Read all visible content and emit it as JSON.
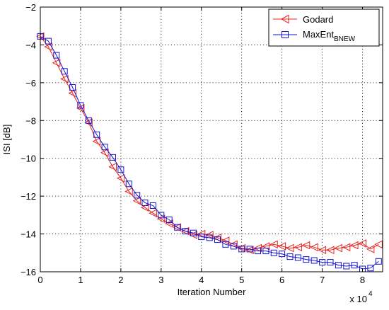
{
  "chart_data": {
    "type": "line",
    "xlabel": "Iteration Number",
    "ylabel": "ISI [dB]",
    "x_multiplier_label": "x 10",
    "x_multiplier_exponent": "4",
    "xlim": [
      0,
      85000
    ],
    "ylim": [
      -16,
      -2
    ],
    "x_ticks": [
      0,
      1,
      2,
      3,
      4,
      5,
      6,
      7,
      8
    ],
    "y_ticks": [
      -16,
      -14,
      -12,
      -10,
      -8,
      -6,
      -4,
      -2
    ],
    "grid": true,
    "legend_position": "top-right",
    "series": [
      {
        "name": "Godard",
        "color": "#e8231f",
        "marker": "triangle-left",
        "x": [
          0,
          2000,
          4000,
          6000,
          8000,
          10000,
          12000,
          14000,
          16000,
          18000,
          20000,
          22000,
          24000,
          26000,
          28000,
          30000,
          32000,
          34000,
          36000,
          38000,
          40000,
          42000,
          44000,
          46000,
          48000,
          50000,
          52000,
          54000,
          56000,
          58000,
          60000,
          62000,
          64000,
          66000,
          68000,
          70000,
          72000,
          74000,
          76000,
          78000,
          80000,
          82000,
          84000
        ],
        "values": [
          -3.55,
          -4.1,
          -4.95,
          -5.8,
          -6.55,
          -7.35,
          -8.1,
          -9.1,
          -9.7,
          -10.45,
          -11.05,
          -11.75,
          -12.25,
          -12.6,
          -12.9,
          -13.2,
          -13.45,
          -13.65,
          -13.85,
          -14.05,
          -14.0,
          -14.05,
          -14.2,
          -14.35,
          -14.55,
          -14.75,
          -14.85,
          -14.75,
          -14.65,
          -14.55,
          -14.65,
          -14.75,
          -14.7,
          -14.6,
          -14.7,
          -14.85,
          -14.85,
          -14.75,
          -14.7,
          -14.6,
          -14.5,
          -14.8,
          -14.55
        ]
      },
      {
        "name": "MaxEnt",
        "name_subscript": "BNEW",
        "color": "#1414d2",
        "marker": "square",
        "x": [
          0,
          2000,
          4000,
          6000,
          8000,
          10000,
          12000,
          14000,
          16000,
          18000,
          20000,
          22000,
          24000,
          26000,
          28000,
          30000,
          32000,
          34000,
          36000,
          38000,
          40000,
          42000,
          44000,
          46000,
          48000,
          50000,
          52000,
          54000,
          56000,
          58000,
          60000,
          62000,
          64000,
          66000,
          68000,
          70000,
          72000,
          74000,
          76000,
          78000,
          80000,
          82000,
          84000
        ],
        "values": [
          -3.55,
          -3.8,
          -4.55,
          -5.4,
          -6.25,
          -7.2,
          -8.0,
          -8.75,
          -9.4,
          -9.95,
          -10.6,
          -11.35,
          -11.95,
          -12.35,
          -12.5,
          -13.0,
          -13.25,
          -13.65,
          -13.85,
          -13.95,
          -14.15,
          -14.2,
          -14.3,
          -14.55,
          -14.65,
          -14.8,
          -14.8,
          -14.9,
          -14.9,
          -15.0,
          -15.05,
          -15.2,
          -15.25,
          -15.35,
          -15.4,
          -15.5,
          -15.5,
          -15.65,
          -15.7,
          -15.65,
          -15.85,
          -15.8,
          -15.45
        ]
      }
    ]
  }
}
